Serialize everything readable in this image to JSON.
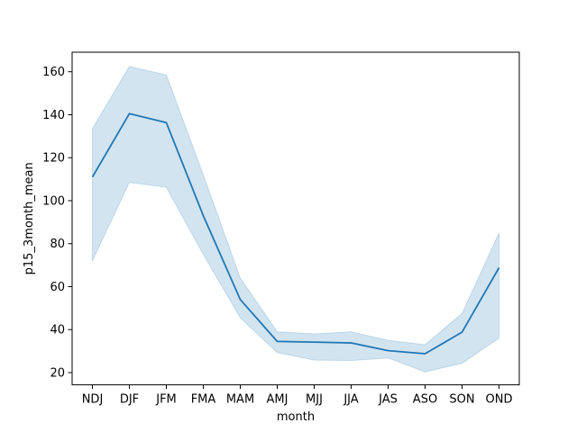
{
  "chart_data": {
    "type": "line",
    "title": "",
    "xlabel": "month",
    "ylabel": "p15_3month_mean",
    "categories": [
      "NDJ",
      "DJF",
      "JFM",
      "FMA",
      "MAM",
      "AMJ",
      "MJJ",
      "JJA",
      "JAS",
      "ASO",
      "SON",
      "OND"
    ],
    "series": [
      {
        "values": [
          111,
          140.5,
          136.3,
          93,
          54,
          34.5,
          34.2,
          33.8,
          30.2,
          28.8,
          38.8,
          68.8
        ],
        "ci_lower": [
          72,
          108.5,
          106.2,
          75,
          45.5,
          29.3,
          25.8,
          25.6,
          26.8,
          20.3,
          24.3,
          36
        ],
        "ci_upper": [
          133.5,
          162.5,
          158.5,
          112,
          64,
          39,
          38,
          39,
          35,
          33,
          47.5,
          85
        ],
        "color": "#1f77b4"
      }
    ],
    "yticks": [
      20,
      40,
      60,
      80,
      100,
      120,
      140,
      160
    ],
    "ylim": [
      14.3,
      169.1
    ],
    "grid": false,
    "legend": "none",
    "band_color": "#1f77b4",
    "band_opacity": 0.2
  }
}
